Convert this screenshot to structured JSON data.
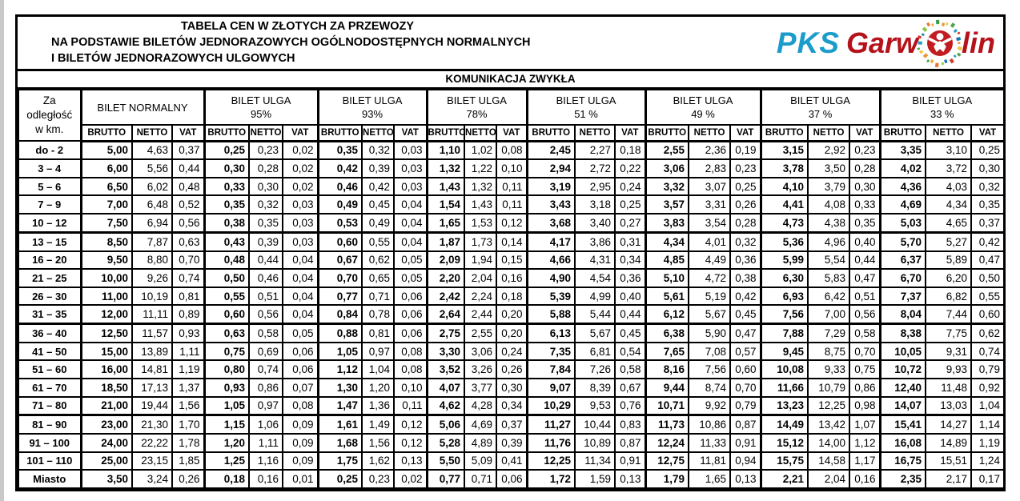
{
  "title": {
    "line1": "TABELA CEN W ZŁOTYCH ZA PRZEWOZY",
    "line2": "NA PODSTAWIE BILETÓW JEDNORAZOWYCH OGÓLNODOSTĘPNYCH NORMALNYCH",
    "line3": "I BILETÓW JEDNORAZOWYCH ULGOWYCH"
  },
  "logo": {
    "pks": "PKS",
    "garw": "Garw",
    "lin": "lin",
    "pks_blue": "#1b9ccb",
    "garwolin_red": "#b5121b",
    "o_red": "#c21b20",
    "mosaic_colors": [
      "#e8973c",
      "#f2c53e",
      "#4ca64c",
      "#2aa0c8",
      "#d23b2f",
      "#1b74b8",
      "#8cc640",
      "#e8762e",
      "#f2a83e",
      "#3d9e49"
    ]
  },
  "section_header": "KOMUNIKACJA ZWYKŁA",
  "table": {
    "distance_header_lines": [
      "Za",
      "odległość",
      "w km."
    ],
    "groups": [
      {
        "line1": "BILET NORMALNY",
        "line2": ""
      },
      {
        "line1": "BILET ULGA",
        "line2": "95%"
      },
      {
        "line1": "BILET ULGA",
        "line2": "93%"
      },
      {
        "line1": "BILET ULGA",
        "line2": "78%"
      },
      {
        "line1": "BILET ULGA",
        "line2": "51 %"
      },
      {
        "line1": "BILET ULGA",
        "line2": "49 %"
      },
      {
        "line1": "BILET ULGA",
        "line2": "37 %"
      },
      {
        "line1": "BILET ULGA",
        "line2": "33 %"
      }
    ],
    "sub_headers": [
      "BRUTTO",
      "NETTO",
      "VAT"
    ],
    "rows": [
      {
        "range": "do - 2",
        "values": [
          "5,00",
          "4,63",
          "0,37",
          "0,25",
          "0,23",
          "0,02",
          "0,35",
          "0,32",
          "0,03",
          "1,10",
          "1,02",
          "0,08",
          "2,45",
          "2,27",
          "0,18",
          "2,55",
          "2,36",
          "0,19",
          "3,15",
          "2,92",
          "0,23",
          "3,35",
          "3,10",
          "0,25"
        ]
      },
      {
        "range": "3 – 4",
        "values": [
          "6,00",
          "5,56",
          "0,44",
          "0,30",
          "0,28",
          "0,02",
          "0,42",
          "0,39",
          "0,03",
          "1,32",
          "1,22",
          "0,10",
          "2,94",
          "2,72",
          "0,22",
          "3,06",
          "2,83",
          "0,23",
          "3,78",
          "3,50",
          "0,28",
          "4,02",
          "3,72",
          "0,30"
        ]
      },
      {
        "range": "5 – 6",
        "values": [
          "6,50",
          "6,02",
          "0,48",
          "0,33",
          "0,30",
          "0,02",
          "0,46",
          "0,42",
          "0,03",
          "1,43",
          "1,32",
          "0,11",
          "3,19",
          "2,95",
          "0,24",
          "3,32",
          "3,07",
          "0,25",
          "4,10",
          "3,79",
          "0,30",
          "4,36",
          "4,03",
          "0,32"
        ]
      },
      {
        "range": "7 – 9",
        "values": [
          "7,00",
          "6,48",
          "0,52",
          "0,35",
          "0,32",
          "0,03",
          "0,49",
          "0,45",
          "0,04",
          "1,54",
          "1,43",
          "0,11",
          "3,43",
          "3,18",
          "0,25",
          "3,57",
          "3,31",
          "0,26",
          "4,41",
          "4,08",
          "0,33",
          "4,69",
          "4,34",
          "0,35"
        ]
      },
      {
        "range": "10 – 12",
        "values": [
          "7,50",
          "6,94",
          "0,56",
          "0,38",
          "0,35",
          "0,03",
          "0,53",
          "0,49",
          "0,04",
          "1,65",
          "1,53",
          "0,12",
          "3,68",
          "3,40",
          "0,27",
          "3,83",
          "3,54",
          "0,28",
          "4,73",
          "4,38",
          "0,35",
          "5,03",
          "4,65",
          "0,37"
        ]
      },
      {
        "range": "13 – 15",
        "values": [
          "8,50",
          "7,87",
          "0,63",
          "0,43",
          "0,39",
          "0,03",
          "0,60",
          "0,55",
          "0,04",
          "1,87",
          "1,73",
          "0,14",
          "4,17",
          "3,86",
          "0,31",
          "4,34",
          "4,01",
          "0,32",
          "5,36",
          "4,96",
          "0,40",
          "5,70",
          "5,27",
          "0,42"
        ]
      },
      {
        "range": "16 – 20",
        "values": [
          "9,50",
          "8,80",
          "0,70",
          "0,48",
          "0,44",
          "0,04",
          "0,67",
          "0,62",
          "0,05",
          "2,09",
          "1,94",
          "0,15",
          "4,66",
          "4,31",
          "0,34",
          "4,85",
          "4,49",
          "0,36",
          "5,99",
          "5,54",
          "0,44",
          "6,37",
          "5,89",
          "0,47"
        ]
      },
      {
        "range": "21 – 25",
        "values": [
          "10,00",
          "9,26",
          "0,74",
          "0,50",
          "0,46",
          "0,04",
          "0,70",
          "0,65",
          "0,05",
          "2,20",
          "2,04",
          "0,16",
          "4,90",
          "4,54",
          "0,36",
          "5,10",
          "4,72",
          "0,38",
          "6,30",
          "5,83",
          "0,47",
          "6,70",
          "6,20",
          "0,50"
        ]
      },
      {
        "range": "26 – 30",
        "values": [
          "11,00",
          "10,19",
          "0,81",
          "0,55",
          "0,51",
          "0,04",
          "0,77",
          "0,71",
          "0,06",
          "2,42",
          "2,24",
          "0,18",
          "5,39",
          "4,99",
          "0,40",
          "5,61",
          "5,19",
          "0,42",
          "6,93",
          "6,42",
          "0,51",
          "7,37",
          "6,82",
          "0,55"
        ]
      },
      {
        "range": "31 – 35",
        "values": [
          "12,00",
          "11,11",
          "0,89",
          "0,60",
          "0,56",
          "0,04",
          "0,84",
          "0,78",
          "0,06",
          "2,64",
          "2,44",
          "0,20",
          "5,88",
          "5,44",
          "0,44",
          "6,12",
          "5,67",
          "0,45",
          "7,56",
          "7,00",
          "0,56",
          "8,04",
          "7,44",
          "0,60"
        ]
      },
      {
        "range": "36 – 40",
        "values": [
          "12,50",
          "11,57",
          "0,93",
          "0,63",
          "0,58",
          "0,05",
          "0,88",
          "0,81",
          "0,06",
          "2,75",
          "2,55",
          "0,20",
          "6,13",
          "5,67",
          "0,45",
          "6,38",
          "5,90",
          "0,47",
          "7,88",
          "7,29",
          "0,58",
          "8,38",
          "7,75",
          "0,62"
        ]
      },
      {
        "range": "41 – 50",
        "values": [
          "15,00",
          "13,89",
          "1,11",
          "0,75",
          "0,69",
          "0,06",
          "1,05",
          "0,97",
          "0,08",
          "3,30",
          "3,06",
          "0,24",
          "7,35",
          "6,81",
          "0,54",
          "7,65",
          "7,08",
          "0,57",
          "9,45",
          "8,75",
          "0,70",
          "10,05",
          "9,31",
          "0,74"
        ]
      },
      {
        "range": "51 – 60",
        "values": [
          "16,00",
          "14,81",
          "1,19",
          "0,80",
          "0,74",
          "0,06",
          "1,12",
          "1,04",
          "0,08",
          "3,52",
          "3,26",
          "0,26",
          "7,84",
          "7,26",
          "0,58",
          "8,16",
          "7,56",
          "0,60",
          "10,08",
          "9,33",
          "0,75",
          "10,72",
          "9,93",
          "0,79"
        ]
      },
      {
        "range": "61 – 70",
        "values": [
          "18,50",
          "17,13",
          "1,37",
          "0,93",
          "0,86",
          "0,07",
          "1,30",
          "1,20",
          "0,10",
          "4,07",
          "3,77",
          "0,30",
          "9,07",
          "8,39",
          "0,67",
          "9,44",
          "8,74",
          "0,70",
          "11,66",
          "10,79",
          "0,86",
          "12,40",
          "11,48",
          "0,92"
        ]
      },
      {
        "range": "71 – 80",
        "values": [
          "21,00",
          "19,44",
          "1,56",
          "1,05",
          "0,97",
          "0,08",
          "1,47",
          "1,36",
          "0,11",
          "4,62",
          "4,28",
          "0,34",
          "10,29",
          "9,53",
          "0,76",
          "10,71",
          "9,92",
          "0,79",
          "13,23",
          "12,25",
          "0,98",
          "14,07",
          "13,03",
          "1,04"
        ]
      },
      {
        "range": "81 – 90",
        "values": [
          "23,00",
          "21,30",
          "1,70",
          "1,15",
          "1,06",
          "0,09",
          "1,61",
          "1,49",
          "0,12",
          "5,06",
          "4,69",
          "0,37",
          "11,27",
          "10,44",
          "0,83",
          "11,73",
          "10,86",
          "0,87",
          "14,49",
          "13,42",
          "1,07",
          "15,41",
          "14,27",
          "1,14"
        ]
      },
      {
        "range": "91 – 100",
        "values": [
          "24,00",
          "22,22",
          "1,78",
          "1,20",
          "1,11",
          "0,09",
          "1,68",
          "1,56",
          "0,12",
          "5,28",
          "4,89",
          "0,39",
          "11,76",
          "10,89",
          "0,87",
          "12,24",
          "11,33",
          "0,91",
          "15,12",
          "14,00",
          "1,12",
          "16,08",
          "14,89",
          "1,19"
        ]
      },
      {
        "range": "101 – 110",
        "values": [
          "25,00",
          "23,15",
          "1,85",
          "1,25",
          "1,16",
          "0,09",
          "1,75",
          "1,62",
          "0,13",
          "5,50",
          "5,09",
          "0,41",
          "12,25",
          "11,34",
          "0,91",
          "12,75",
          "11,81",
          "0,94",
          "15,75",
          "14,58",
          "1,17",
          "16,75",
          "15,51",
          "1,24"
        ]
      },
      {
        "range": "Miasto",
        "values": [
          "3,50",
          "3,24",
          "0,26",
          "0,18",
          "0,16",
          "0,01",
          "0,25",
          "0,23",
          "0,02",
          "0,77",
          "0,71",
          "0,06",
          "1,72",
          "1,59",
          "0,13",
          "1,79",
          "1,65",
          "0,13",
          "2,21",
          "2,04",
          "0,16",
          "2,35",
          "2,17",
          "0,17"
        ]
      }
    ]
  }
}
